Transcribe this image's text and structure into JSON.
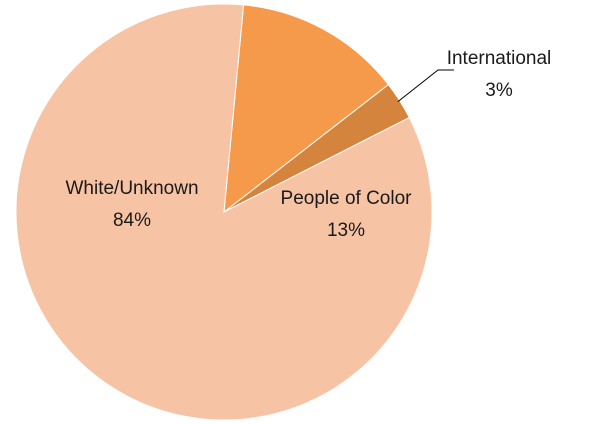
{
  "chart_data": {
    "type": "pie",
    "title": "",
    "slices": [
      {
        "label": "International",
        "value": 3,
        "display": "3%",
        "color": "#d5843d"
      },
      {
        "label": "People of Color",
        "value": 13,
        "display": "13%",
        "color": "#f59a4a"
      },
      {
        "label": "White/Unknown",
        "value": 84,
        "display": "84%",
        "color": "#f7c3a5"
      }
    ],
    "legend": "none",
    "label_style": "category name and percentage on slice; International label outside with leader line"
  }
}
